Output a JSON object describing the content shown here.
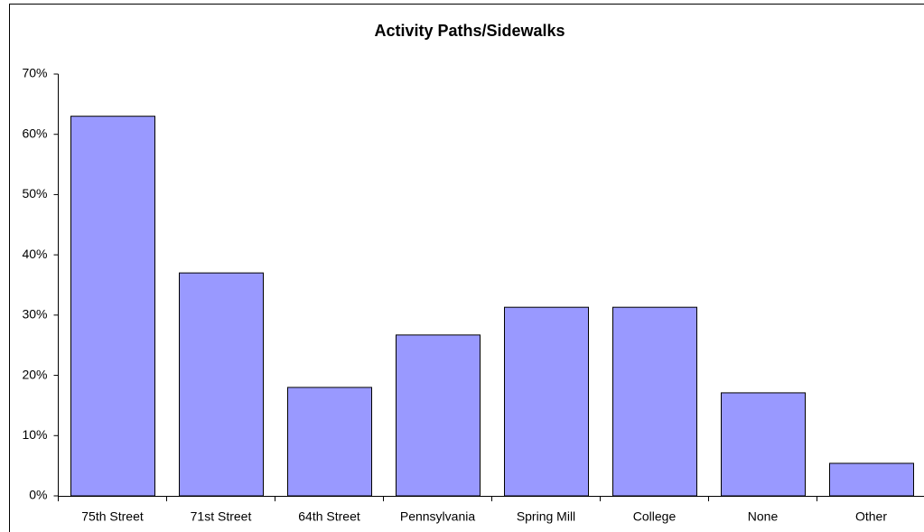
{
  "chart_data": {
    "type": "bar",
    "title": "Activity Paths/Sidewalks",
    "categories": [
      "75th Street",
      "71st Street",
      "64th Street",
      "Pennsylvania",
      "Spring Mill",
      "College",
      "None",
      "Other"
    ],
    "values": [
      63,
      37,
      18,
      26.7,
      31.3,
      31.3,
      17.1,
      5.4
    ],
    "color": "#9999ff",
    "ylim": [
      0,
      70
    ],
    "yticks": [
      {
        "value": 0,
        "label": "0%"
      },
      {
        "value": 10,
        "label": "10%"
      },
      {
        "value": 20,
        "label": "20%"
      },
      {
        "value": 30,
        "label": "30%"
      },
      {
        "value": 40,
        "label": "40%"
      },
      {
        "value": 50,
        "label": "50%"
      },
      {
        "value": 60,
        "label": "60%"
      },
      {
        "value": 70,
        "label": "70%"
      }
    ],
    "grid": false
  }
}
